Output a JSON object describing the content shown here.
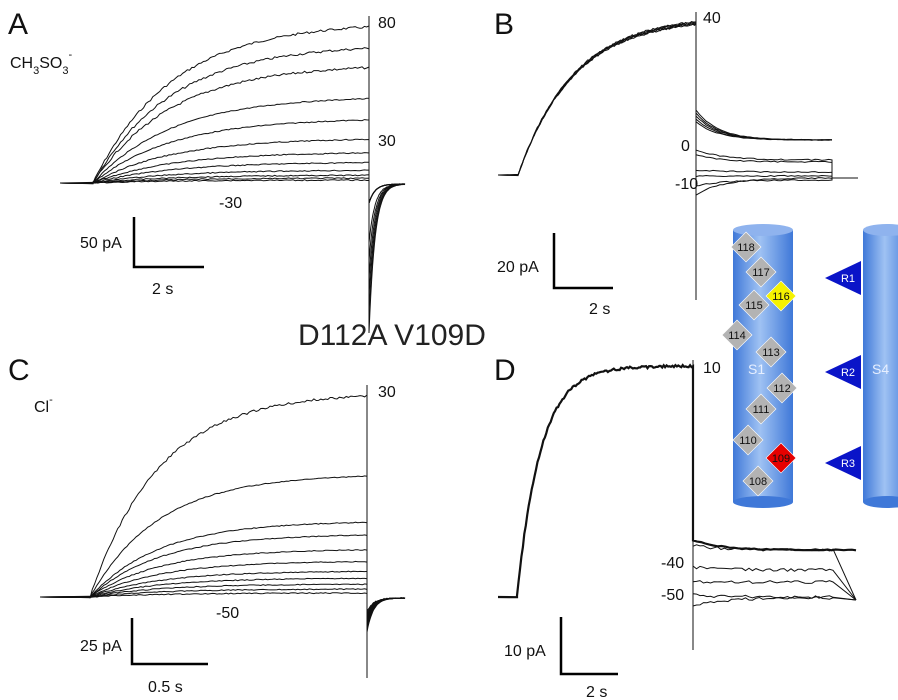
{
  "title": "D112A V109D",
  "panels": {
    "A": {
      "letter": "A",
      "ion_main": "CH",
      "ion_sub1": "3",
      "ion_mid": "SO",
      "ion_sub2": "3",
      "ion_sup": "-",
      "voltage_top": "80",
      "voltage_mid": "30",
      "voltage_hold": "-30",
      "scale_y": "50 pA",
      "scale_x": "2 s"
    },
    "B": {
      "letter": "B",
      "voltage_top": "40",
      "voltage_mid": "0",
      "voltage_low": "-10",
      "scale_y": "20 pA",
      "scale_x": "2 s"
    },
    "C": {
      "letter": "C",
      "ion_main": "Cl",
      "ion_sup": "-",
      "voltage_top": "30",
      "voltage_hold": "-50",
      "scale_y": "25 pA",
      "scale_x": "0.5 s"
    },
    "D": {
      "letter": "D",
      "voltage_top": "10",
      "voltage_mid": "-40",
      "voltage_low": "-50",
      "scale_y": "10 pA",
      "scale_x": "2 s"
    }
  },
  "helix_diagram": {
    "s1_label": "S1",
    "s4_label": "S4",
    "residues": [
      "118",
      "117",
      "116",
      "115",
      "114",
      "113",
      "112",
      "111",
      "110",
      "109",
      "108"
    ],
    "highlight_yellow": "116",
    "highlight_red": "109",
    "arginines": [
      "R1",
      "R2",
      "R3"
    ],
    "colors": {
      "helix": "#5b8fe0",
      "residue": "#b3b3b3",
      "yellow": "#f5f200",
      "red": "#e60000",
      "arginine": "#0a14c8"
    }
  }
}
